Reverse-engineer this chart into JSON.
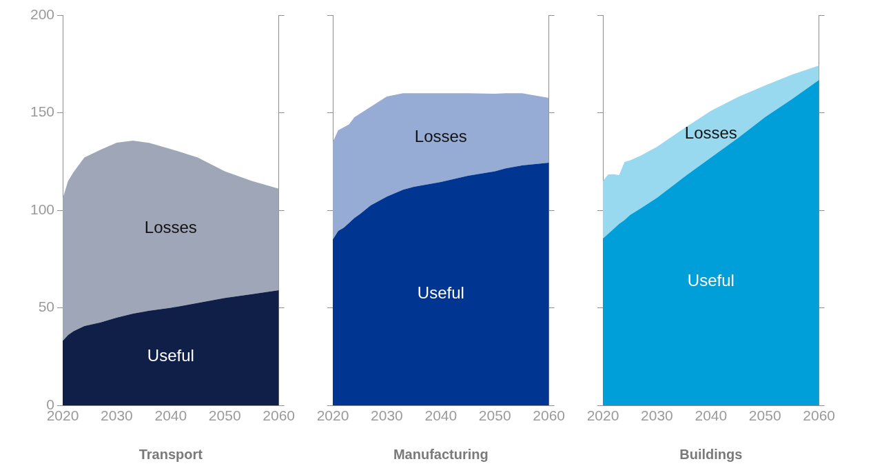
{
  "chart_data": [
    {
      "type": "area",
      "stacked": true,
      "xlabel": "Transport",
      "x": [
        2020,
        2021,
        2022,
        2024,
        2027,
        2030,
        2033,
        2036,
        2040,
        2045,
        2050,
        2055,
        2060
      ],
      "xlim": [
        2020,
        2060
      ],
      "xticks": [
        2020,
        2030,
        2040,
        2050,
        2060
      ],
      "ylim": [
        0,
        200
      ],
      "yticks": [
        0,
        50,
        100,
        150,
        200
      ],
      "grid": false,
      "legend": false,
      "series": [
        {
          "name": "Useful",
          "color": "#0f1f47",
          "values": [
            33,
            36,
            38,
            40.6,
            42.5,
            45,
            47,
            48.5,
            50,
            52.5,
            55,
            57,
            59
          ]
        },
        {
          "name": "Losses",
          "color": "#9fa6b8",
          "values": [
            73,
            79,
            81.5,
            86.4,
            88.5,
            89.6,
            88.7,
            86,
            81.4,
            74.5,
            65,
            58,
            52
          ]
        }
      ]
    },
    {
      "type": "area",
      "stacked": true,
      "xlabel": "Manufacturing",
      "tick_labels": "x",
      "x": [
        2020,
        2021,
        2022,
        2023,
        2024,
        2025,
        2027,
        2030,
        2033,
        2035,
        2040,
        2045,
        2050,
        2052,
        2055,
        2060
      ],
      "xlim": [
        2020,
        2060
      ],
      "xticks": [
        2020,
        2030,
        2040,
        2050,
        2060
      ],
      "ylim": [
        0,
        200
      ],
      "yticks": [
        0,
        50,
        100,
        150,
        200
      ],
      "grid": false,
      "legend": false,
      "series": [
        {
          "name": "Useful",
          "color": "#003591",
          "values": [
            85,
            89.4,
            91,
            93.5,
            96,
            98,
            102.5,
            107,
            110.5,
            112,
            114.5,
            117.7,
            120,
            121.5,
            123,
            124.4
          ]
        },
        {
          "name": "Losses",
          "color": "#97acd4",
          "values": [
            50,
            51.6,
            51.5,
            50.5,
            51.7,
            51.5,
            50.5,
            51.3,
            49.5,
            48,
            45.5,
            42.3,
            39.7,
            38.5,
            37,
            33.2
          ]
        }
      ]
    },
    {
      "type": "area",
      "stacked": true,
      "xlabel": "Buildings",
      "tick_labels": "x",
      "x": [
        2020,
        2021,
        2022,
        2023,
        2024,
        2025,
        2027,
        2030,
        2035,
        2040,
        2045,
        2050,
        2055,
        2060
      ],
      "xlim": [
        2020,
        2060
      ],
      "xticks": [
        2020,
        2030,
        2040,
        2050,
        2060
      ],
      "ylim": [
        0,
        200
      ],
      "yticks": [
        0,
        50,
        100,
        150,
        200
      ],
      "grid": false,
      "legend": false,
      "series": [
        {
          "name": "Useful",
          "color": "#009fd9",
          "values": [
            85.5,
            88,
            90.5,
            93,
            95,
            97.5,
            101,
            106.4,
            117,
            127,
            137,
            147.7,
            157,
            166.8
          ]
        },
        {
          "name": "Losses",
          "color": "#99d9f0",
          "values": [
            29.5,
            30.4,
            28,
            25,
            29.7,
            28,
            27,
            26.1,
            25,
            24,
            21,
            16.3,
            12.5,
            7.4
          ]
        }
      ]
    }
  ]
}
